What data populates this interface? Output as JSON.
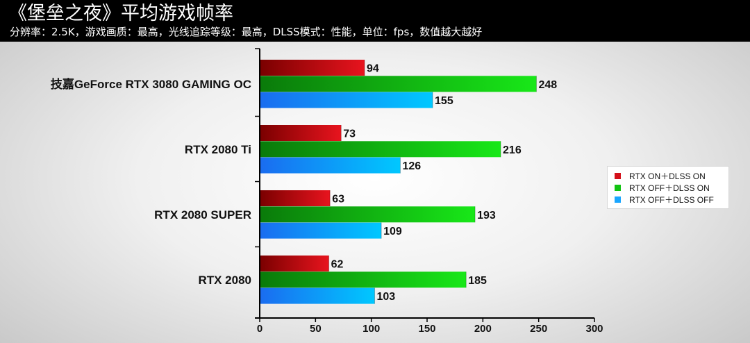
{
  "header": {
    "title": "《堡垒之夜》平均游戏帧率",
    "subtitle": "分辨率：2.5K，游戏画质：最高，光线追踪等级：最高，DLSS模式：性能，单位：fps，数值越大越好"
  },
  "chart_data": {
    "type": "bar",
    "orientation": "horizontal",
    "title": "《堡垒之夜》平均游戏帧率",
    "subtitle": "分辨率：2.5K，游戏画质：最高，光线追踪等级：最高，DLSS模式：性能，单位：fps，数值越大越好",
    "categories": [
      "技嘉GeForce RTX 3080 GAMING OC",
      "RTX 2080 Ti",
      "RTX 2080 SUPER",
      "RTX 2080"
    ],
    "series": [
      {
        "name": "RTX ON＋DLSS ON",
        "color": "#e8141e",
        "dark": "#7a0000",
        "values": [
          94,
          73,
          63,
          62
        ]
      },
      {
        "name": "RTX OFF＋DLSS ON",
        "color": "#18e818",
        "dark": "#0a7a0a",
        "values": [
          248,
          216,
          193,
          185
        ]
      },
      {
        "name": "RTX OFF＋DLSS OFF",
        "color": "#00c8ff",
        "dark": "#1a6cf0",
        "values": [
          155,
          126,
          109,
          103
        ]
      }
    ],
    "xlim": [
      0,
      300
    ],
    "xticks": [
      0,
      50,
      100,
      150,
      200,
      250,
      300
    ],
    "legend_position": "right",
    "grid": false
  }
}
